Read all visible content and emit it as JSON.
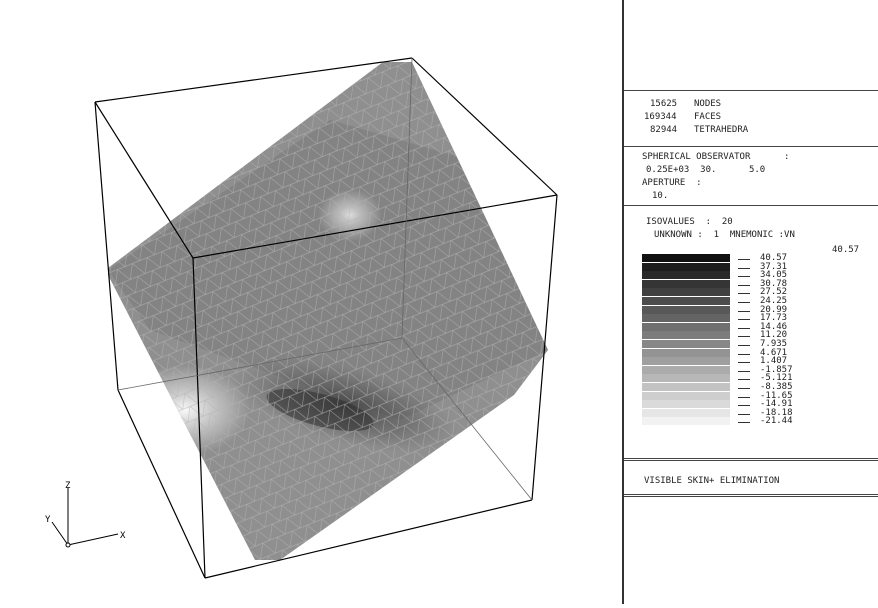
{
  "stats": {
    "nodes_count": "15625",
    "nodes_label": "NODES",
    "faces_count": "169344",
    "faces_label": "FACES",
    "tetra_count": "82944",
    "tetra_label": "TETRAHEDRA"
  },
  "observer": {
    "title": "SPHERICAL OBSERVATOR",
    "colon": ":",
    "values": "0.25E+03  30.      5.0",
    "aperture_label": "APERTURE  :",
    "aperture_value": "10."
  },
  "isovalues": {
    "label": "ISOVALUES  :  20",
    "unknown_line": "UNKNOWN :  1  MNEMONIC :VN",
    "max_value": "40.57",
    "levels": [
      "40.57",
      "37.31",
      "34.05",
      "30.78",
      "27.52",
      "24.25",
      "20.99",
      "17.73",
      "14.46",
      "11.20",
      "7.935",
      "4.671",
      "1.407",
      "-1.857",
      "-5.121",
      "-8.385",
      "-11.65",
      "-14.91",
      "-18.18",
      "-21.44"
    ]
  },
  "mode": {
    "label": "VISIBLE SKIN+ ELIMINATION"
  },
  "axes": {
    "z": "Z",
    "y": "Y",
    "x": "X"
  },
  "colors": {
    "darkest": "#111111",
    "lightest": "#f2f2f2",
    "mesh": "#9a9a9a"
  }
}
